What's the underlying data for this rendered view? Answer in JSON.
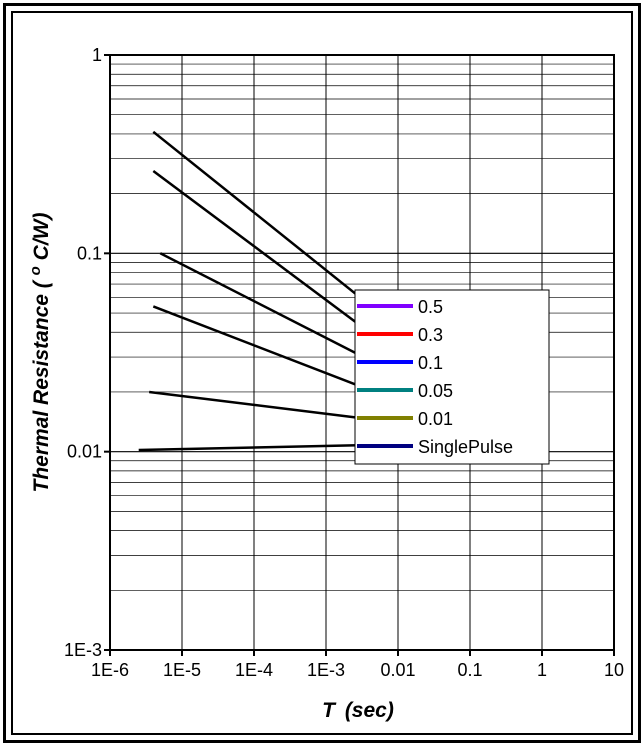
{
  "chart_data": {
    "type": "line",
    "title": "",
    "xlabel_main": "T",
    "xlabel_unit": "(sec)",
    "ylabel_main": "Thermal Resistance",
    "ylabel_unit_super": "o",
    "ylabel_unit_rest": "C/W)",
    "ylabel_paren_open": "(",
    "x_scale": "log",
    "y_scale": "log",
    "xlim": [
      1e-06,
      10
    ],
    "ylim": [
      0.001,
      1
    ],
    "grid": true,
    "x_ticks": [
      {
        "value": 1e-06,
        "label": "1E-6"
      },
      {
        "value": 1e-05,
        "label": "1E-5"
      },
      {
        "value": 0.0001,
        "label": "1E-4"
      },
      {
        "value": 0.001,
        "label": "1E-3"
      },
      {
        "value": 0.01,
        "label": "0.01"
      },
      {
        "value": 0.1,
        "label": "0.1"
      },
      {
        "value": 1,
        "label": "1"
      },
      {
        "value": 10,
        "label": "10"
      }
    ],
    "y_ticks": [
      {
        "value": 1,
        "label": "1"
      },
      {
        "value": 0.1,
        "label": "0.1"
      },
      {
        "value": 0.01,
        "label": "0.01"
      },
      {
        "value": 0.001,
        "label": "1E-3"
      }
    ],
    "legend_position": "center-right",
    "series": [
      {
        "name": "0.5",
        "color": "#8000ff",
        "points": [
          [
            4e-06,
            0.41
          ],
          [
            0.004,
            0.055
          ]
        ]
      },
      {
        "name": "0.3",
        "color": "#ff0000",
        "points": [
          [
            4e-06,
            0.26
          ],
          [
            0.004,
            0.04
          ]
        ]
      },
      {
        "name": "0.1",
        "color": "#0000ff",
        "points": [
          [
            5e-06,
            0.1
          ],
          [
            0.004,
            0.029
          ]
        ]
      },
      {
        "name": "0.05",
        "color": "#008080",
        "points": [
          [
            4e-06,
            0.054
          ],
          [
            0.004,
            0.0205
          ]
        ]
      },
      {
        "name": "0.01",
        "color": "#808000",
        "points": [
          [
            3.5e-06,
            0.02
          ],
          [
            0.004,
            0.0146
          ]
        ]
      },
      {
        "name": "SinglePulse",
        "color": "#000080",
        "points": [
          [
            2.5e-06,
            0.0102
          ],
          [
            0.004,
            0.0108
          ]
        ]
      }
    ]
  }
}
